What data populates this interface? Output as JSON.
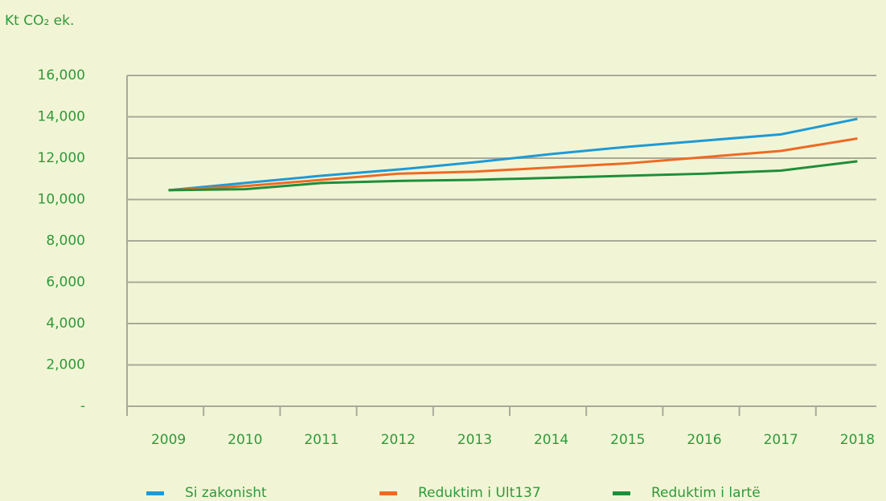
{
  "chart_data": {
    "type": "line",
    "ylabel": "Kt CO₂ ek.",
    "categories": [
      "2009",
      "2010",
      "2011",
      "2012",
      "2013",
      "2014",
      "2015",
      "2016",
      "2017",
      "2018"
    ],
    "series": [
      {
        "name": "Si zakonisht",
        "color": "#1e9ad6",
        "values": [
          10450,
          10800,
          11150,
          11450,
          11800,
          12200,
          12550,
          12850,
          13150,
          13900
        ]
      },
      {
        "name": "Reduktim i Ult137",
        "color": "#ee6a24",
        "values": [
          10450,
          10650,
          10950,
          11250,
          11350,
          11550,
          11750,
          12050,
          12350,
          12950
        ]
      },
      {
        "name": "Reduktim i lartë",
        "color": "#1f8e3a",
        "values": [
          10450,
          10500,
          10800,
          10900,
          10950,
          11050,
          11150,
          11250,
          11400,
          11850
        ]
      }
    ],
    "ylim": [
      0,
      16000
    ],
    "yticks": [
      {
        "value": 0,
        "label": "-"
      },
      {
        "value": 2000,
        "label": "2,000"
      },
      {
        "value": 4000,
        "label": "4,000"
      },
      {
        "value": 6000,
        "label": "6,000"
      },
      {
        "value": 8000,
        "label": "8,000"
      },
      {
        "value": 10000,
        "label": "10,000"
      },
      {
        "value": 12000,
        "label": "12,000"
      },
      {
        "value": 14000,
        "label": "14,000"
      },
      {
        "value": 16000,
        "label": "16,000"
      }
    ],
    "grid": true,
    "legend": "bottom"
  }
}
